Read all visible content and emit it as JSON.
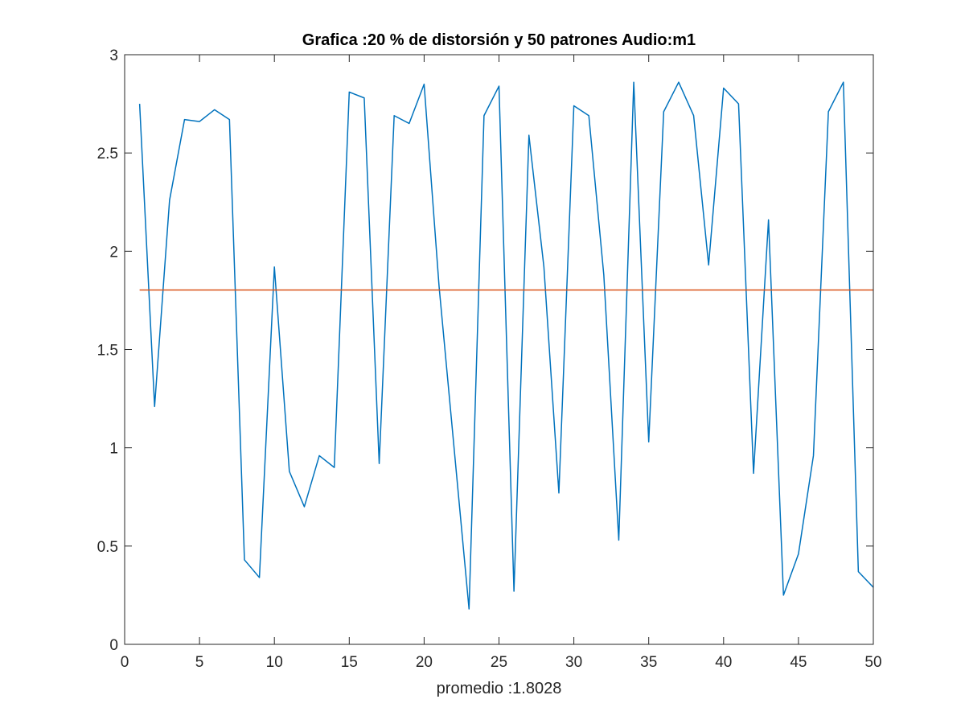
{
  "chart_data": {
    "type": "line",
    "title": "Grafica :20 % de distorsión y 50 patrones Audio:m1",
    "xlabel": "promedio :1.8028",
    "ylabel": "",
    "xlim": [
      0,
      50
    ],
    "ylim": [
      0,
      3
    ],
    "x_ticks": [
      "0",
      "5",
      "10",
      "15",
      "20",
      "25",
      "30",
      "35",
      "40",
      "45",
      "50"
    ],
    "y_ticks": [
      "0",
      "0.5",
      "1",
      "1.5",
      "2",
      "2.5",
      "3"
    ],
    "grid": false,
    "box": true,
    "series": [
      {
        "color": "#0072BD",
        "x": [
          1,
          2,
          3,
          4,
          5,
          6,
          7,
          8,
          9,
          10,
          11,
          12,
          13,
          14,
          15,
          16,
          17,
          18,
          19,
          20,
          21,
          22,
          23,
          24,
          25,
          26,
          27,
          28,
          29,
          30,
          31,
          32,
          33,
          34,
          35,
          36,
          37,
          38,
          39,
          40,
          41,
          42,
          43,
          44,
          45,
          46,
          47,
          48,
          49,
          50
        ],
        "values": [
          2.75,
          1.21,
          2.26,
          2.67,
          2.66,
          2.72,
          2.67,
          0.43,
          0.34,
          1.92,
          0.88,
          0.7,
          0.96,
          0.9,
          2.81,
          2.78,
          0.92,
          2.69,
          2.65,
          2.85,
          1.82,
          1.0,
          0.18,
          2.69,
          2.84,
          0.27,
          2.59,
          1.92,
          0.77,
          2.74,
          2.69,
          1.88,
          0.53,
          2.86,
          1.03,
          2.71,
          2.86,
          2.69,
          1.93,
          2.83,
          2.75,
          0.87,
          2.16,
          0.25,
          0.46,
          0.96,
          2.71,
          2.86,
          0.37,
          0.29
        ]
      },
      {
        "color": "#D95319",
        "x": [
          1,
          50
        ],
        "values": [
          1.8028,
          1.8028
        ]
      }
    ]
  }
}
